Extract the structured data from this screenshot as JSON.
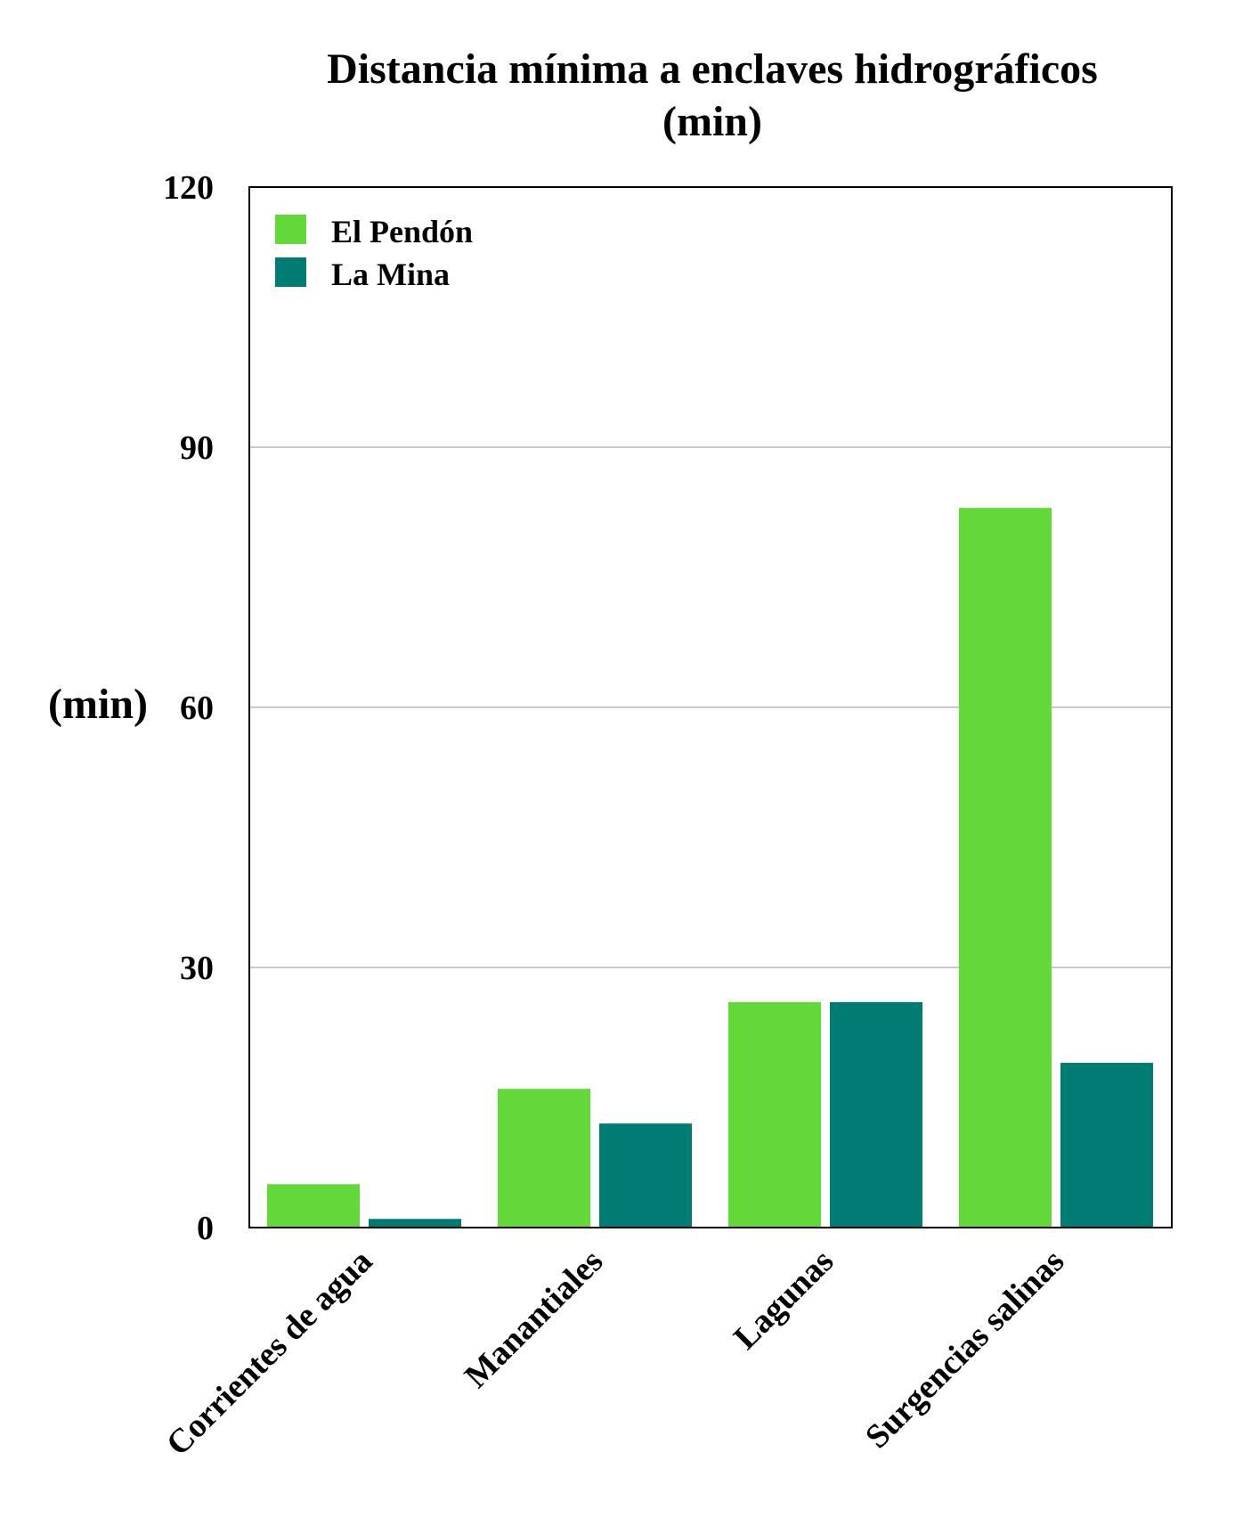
{
  "chart_data": {
    "type": "bar",
    "title_lines": [
      "Distancia mínima a enclaves hidrográficos",
      "(min)"
    ],
    "ylabel": "(min)",
    "xlabel": "",
    "ylim": [
      0,
      120
    ],
    "yticks": [
      0,
      30,
      60,
      90,
      120
    ],
    "grid": true,
    "legend_position": "top-left",
    "categories": [
      "Corrientes de agua",
      "Manantiales",
      "Lagunas",
      "Surgencias salinas"
    ],
    "series": [
      {
        "name": "El Pendón",
        "color": "#62d83a",
        "values": [
          5,
          16,
          26,
          83
        ]
      },
      {
        "name": "La Mina",
        "color": "#007b72",
        "values": [
          1,
          12,
          26,
          19
        ]
      }
    ]
  }
}
